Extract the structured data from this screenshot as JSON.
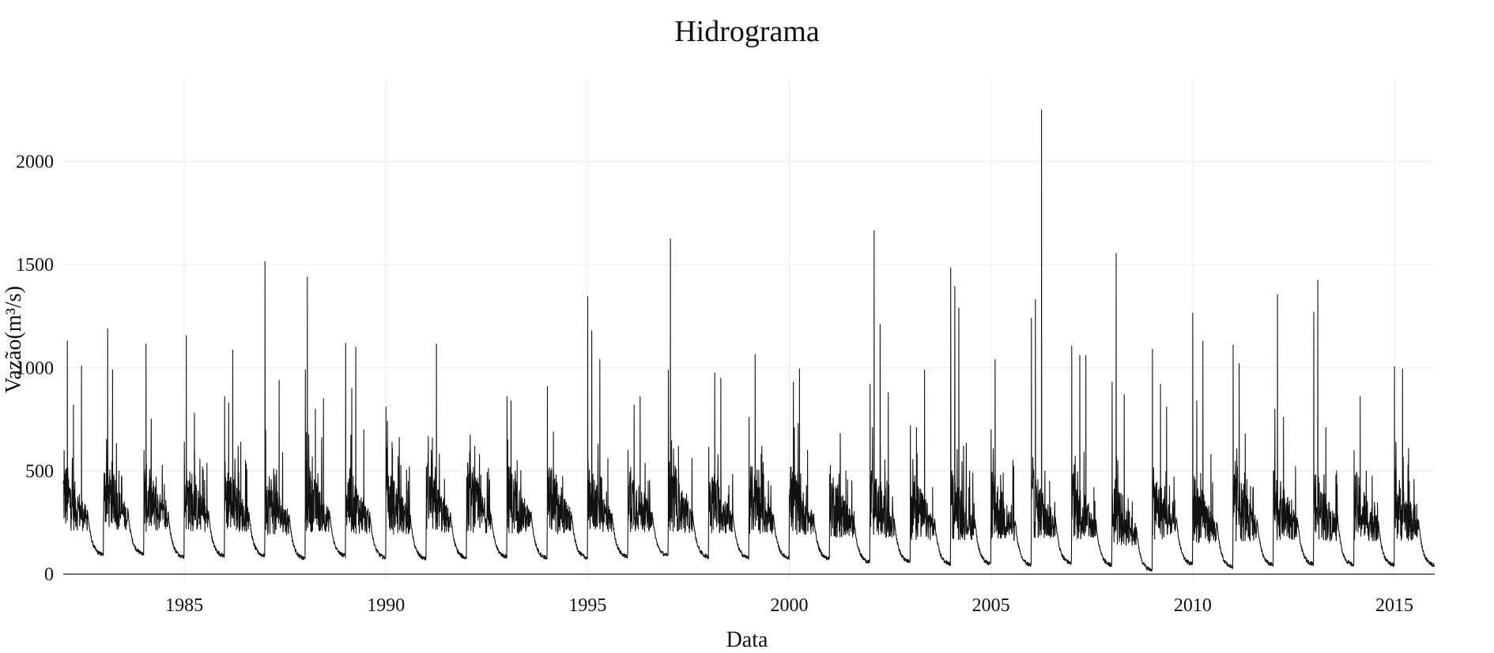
{
  "chart_data": {
    "type": "line",
    "title": "Hidrograma",
    "xlabel": "Data",
    "ylabel": "Vazão(m³/s)",
    "x_range": [
      1982.0,
      2016.0
    ],
    "ylim": [
      -30,
      2400
    ],
    "x_ticks": [
      1985,
      1990,
      1995,
      2000,
      2005,
      2010,
      2015
    ],
    "y_ticks": [
      0,
      500,
      1000,
      1500,
      2000
    ],
    "grid": true,
    "legend": "none",
    "line_color": "#111111",
    "series": [
      {
        "annual_peaks": [
          {
            "year": 1982,
            "peaks": [
              [
                0.02,
                600
              ],
              [
                0.1,
                1130
              ],
              [
                0.25,
                820
              ],
              [
                0.45,
                1010
              ]
            ]
          },
          {
            "year": 1983,
            "peaks": [
              [
                0.0,
                310
              ],
              [
                0.1,
                1190
              ],
              [
                0.22,
                990
              ],
              [
                0.45,
                470
              ]
            ]
          },
          {
            "year": 1984,
            "peaks": [
              [
                0.0,
                600
              ],
              [
                0.05,
                1115
              ],
              [
                0.3,
                470
              ],
              [
                0.55,
                330
              ]
            ]
          },
          {
            "year": 1985,
            "peaks": [
              [
                0.0,
                640
              ],
              [
                0.05,
                1155
              ],
              [
                0.25,
                780
              ],
              [
                0.45,
                520
              ]
            ]
          },
          {
            "year": 1986,
            "peaks": [
              [
                0.0,
                860
              ],
              [
                0.1,
                830
              ],
              [
                0.2,
                1085
              ],
              [
                0.4,
                640
              ]
            ]
          },
          {
            "year": 1987,
            "peaks": [
              [
                0.0,
                1515
              ],
              [
                0.25,
                480
              ],
              [
                0.35,
                940
              ],
              [
                0.55,
                270
              ]
            ]
          },
          {
            "year": 1988,
            "peaks": [
              [
                0.0,
                990
              ],
              [
                0.05,
                1440
              ],
              [
                0.25,
                800
              ],
              [
                0.45,
                850
              ]
            ]
          },
          {
            "year": 1989,
            "peaks": [
              [
                0.0,
                1120
              ],
              [
                0.15,
                900
              ],
              [
                0.25,
                1100
              ],
              [
                0.45,
                700
              ]
            ]
          },
          {
            "year": 1990,
            "peaks": [
              [
                0.0,
                810
              ],
              [
                0.15,
                640
              ],
              [
                0.3,
                570
              ],
              [
                0.55,
                450
              ]
            ]
          },
          {
            "year": 1991,
            "peaks": [
              [
                0.0,
                520
              ],
              [
                0.15,
                660
              ],
              [
                0.25,
                1115
              ],
              [
                0.45,
                460
              ]
            ]
          },
          {
            "year": 1992,
            "peaks": [
              [
                0.0,
                470
              ],
              [
                0.2,
                620
              ],
              [
                0.35,
                480
              ],
              [
                0.55,
                310
              ]
            ]
          },
          {
            "year": 1993,
            "peaks": [
              [
                0.0,
                860
              ],
              [
                0.1,
                840
              ],
              [
                0.25,
                550
              ],
              [
                0.5,
                320
              ]
            ]
          },
          {
            "year": 1994,
            "peaks": [
              [
                0.0,
                910
              ],
              [
                0.15,
                690
              ],
              [
                0.35,
                420
              ],
              [
                0.55,
                300
              ]
            ]
          },
          {
            "year": 1995,
            "peaks": [
              [
                0.0,
                1345
              ],
              [
                0.1,
                1180
              ],
              [
                0.3,
                1040
              ],
              [
                0.5,
                560
              ]
            ]
          },
          {
            "year": 1996,
            "peaks": [
              [
                0.0,
                600
              ],
              [
                0.15,
                820
              ],
              [
                0.3,
                860
              ],
              [
                0.5,
                450
              ]
            ]
          },
          {
            "year": 1997,
            "peaks": [
              [
                0.0,
                990
              ],
              [
                0.05,
                1625
              ],
              [
                0.25,
                620
              ],
              [
                0.45,
                390
              ]
            ]
          },
          {
            "year": 1998,
            "peaks": [
              [
                0.0,
                615
              ],
              [
                0.15,
                975
              ],
              [
                0.3,
                950
              ],
              [
                0.5,
                430
              ]
            ]
          },
          {
            "year": 1999,
            "peaks": [
              [
                0.0,
                760
              ],
              [
                0.15,
                1065
              ],
              [
                0.3,
                580
              ],
              [
                0.5,
                320
              ]
            ]
          },
          {
            "year": 2000,
            "peaks": [
              [
                0.0,
                380
              ],
              [
                0.1,
                930
              ],
              [
                0.25,
                995
              ],
              [
                0.45,
                600
              ]
            ]
          },
          {
            "year": 2001,
            "peaks": [
              [
                0.0,
                280
              ],
              [
                0.2,
                250
              ],
              [
                0.4,
                500
              ],
              [
                0.6,
                200
              ]
            ]
          },
          {
            "year": 2002,
            "peaks": [
              [
                0.0,
                920
              ],
              [
                0.1,
                1665
              ],
              [
                0.25,
                1210
              ],
              [
                0.45,
                880
              ]
            ]
          },
          {
            "year": 2003,
            "peaks": [
              [
                0.0,
                720
              ],
              [
                0.15,
                710
              ],
              [
                0.35,
                990
              ],
              [
                0.55,
                420
              ]
            ]
          },
          {
            "year": 2004,
            "peaks": [
              [
                0.0,
                1485
              ],
              [
                0.1,
                1395
              ],
              [
                0.2,
                1290
              ],
              [
                0.45,
                420
              ]
            ]
          },
          {
            "year": 2005,
            "peaks": [
              [
                0.0,
                700
              ],
              [
                0.1,
                1040
              ],
              [
                0.3,
                490
              ],
              [
                0.5,
                250
              ]
            ]
          },
          {
            "year": 2006,
            "peaks": [
              [
                0.0,
                1240
              ],
              [
                0.1,
                1330
              ],
              [
                0.25,
                2250
              ],
              [
                0.45,
                450
              ]
            ]
          },
          {
            "year": 2007,
            "peaks": [
              [
                0.0,
                1105
              ],
              [
                0.2,
                1060
              ],
              [
                0.35,
                1060
              ],
              [
                0.55,
                420
              ]
            ]
          },
          {
            "year": 2008,
            "peaks": [
              [
                0.0,
                930
              ],
              [
                0.1,
                1555
              ],
              [
                0.3,
                870
              ],
              [
                0.5,
                350
              ]
            ]
          },
          {
            "year": 2009,
            "peaks": [
              [
                0.0,
                1090
              ],
              [
                0.2,
                920
              ],
              [
                0.35,
                810
              ],
              [
                0.55,
                360
              ]
            ]
          },
          {
            "year": 2010,
            "peaks": [
              [
                0.0,
                1265
              ],
              [
                0.1,
                840
              ],
              [
                0.25,
                1130
              ],
              [
                0.45,
                580
              ]
            ]
          },
          {
            "year": 2011,
            "peaks": [
              [
                0.0,
                1110
              ],
              [
                0.15,
                1020
              ],
              [
                0.3,
                680
              ],
              [
                0.5,
                420
              ]
            ]
          },
          {
            "year": 2012,
            "peaks": [
              [
                0.0,
                500
              ],
              [
                0.1,
                1355
              ],
              [
                0.25,
                760
              ],
              [
                0.45,
                360
              ]
            ]
          },
          {
            "year": 2013,
            "peaks": [
              [
                0.0,
                1270
              ],
              [
                0.1,
                1425
              ],
              [
                0.3,
                710
              ],
              [
                0.5,
                290
              ]
            ]
          },
          {
            "year": 2014,
            "peaks": [
              [
                0.0,
                600
              ],
              [
                0.15,
                860
              ],
              [
                0.3,
                500
              ],
              [
                0.5,
                300
              ]
            ]
          },
          {
            "year": 2015,
            "peaks": [
              [
                0.0,
                1005
              ],
              [
                0.2,
                995
              ],
              [
                0.35,
                610
              ],
              [
                0.55,
                250
              ]
            ]
          }
        ],
        "baseflow": [
          {
            "year": 1982,
            "min": 90
          },
          {
            "year": 1983,
            "min": 95
          },
          {
            "year": 1984,
            "min": 80
          },
          {
            "year": 1985,
            "min": 85
          },
          {
            "year": 1986,
            "min": 85
          },
          {
            "year": 1987,
            "min": 70
          },
          {
            "year": 1988,
            "min": 85
          },
          {
            "year": 1989,
            "min": 75
          },
          {
            "year": 1990,
            "min": 70
          },
          {
            "year": 1991,
            "min": 75
          },
          {
            "year": 1992,
            "min": 80
          },
          {
            "year": 1993,
            "min": 75
          },
          {
            "year": 1994,
            "min": 75
          },
          {
            "year": 1995,
            "min": 80
          },
          {
            "year": 1996,
            "min": 85
          },
          {
            "year": 1997,
            "min": 80
          },
          {
            "year": 1998,
            "min": 75
          },
          {
            "year": 1999,
            "min": 75
          },
          {
            "year": 2000,
            "min": 70
          },
          {
            "year": 2001,
            "min": 55
          },
          {
            "year": 2002,
            "min": 55
          },
          {
            "year": 2003,
            "min": 45
          },
          {
            "year": 2004,
            "min": 45
          },
          {
            "year": 2005,
            "min": 40
          },
          {
            "year": 2006,
            "min": 50
          },
          {
            "year": 2007,
            "min": 40
          },
          {
            "year": 2008,
            "min": 15
          },
          {
            "year": 2009,
            "min": 45
          },
          {
            "year": 2010,
            "min": 30
          },
          {
            "year": 2011,
            "min": 40
          },
          {
            "year": 2012,
            "min": 45
          },
          {
            "year": 2013,
            "min": 40
          },
          {
            "year": 2014,
            "min": 40
          },
          {
            "year": 2015,
            "min": 40
          }
        ]
      }
    ]
  }
}
